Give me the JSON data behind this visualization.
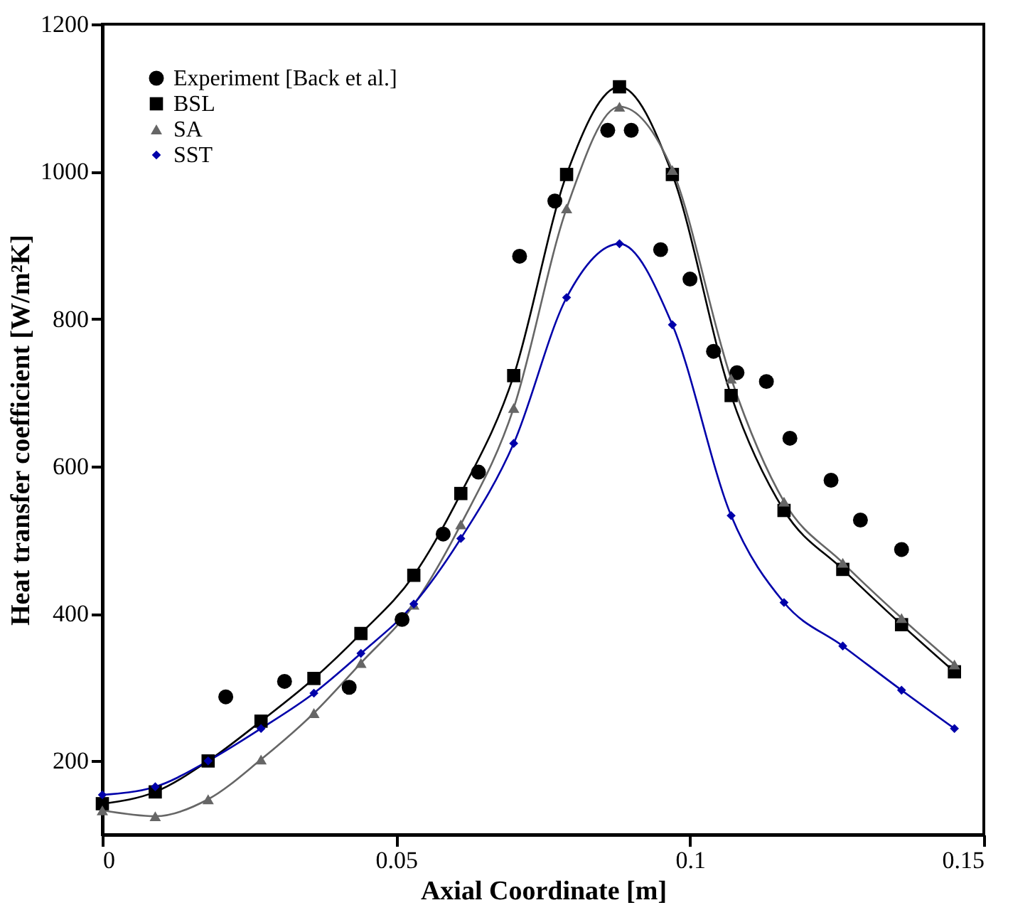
{
  "chart_data": {
    "type": "line",
    "xlabel": "Axial Coordinate [m]",
    "ylabel": "Heat transfer coefficient [W/m²K]",
    "xlim": [
      0,
      0.15
    ],
    "xticks": [
      0,
      0.05,
      0.1,
      0.15
    ],
    "ylim": [
      100,
      1200
    ],
    "yticks": [
      200,
      400,
      600,
      800,
      1000,
      1200
    ],
    "grid": false,
    "legend": "top left",
    "line_style": "solid",
    "series": [
      {
        "name": "Experiment [Back et al.]",
        "type": "scatter",
        "marker": "circle",
        "color": "#000000",
        "x": [
          0.021,
          0.031,
          0.042,
          0.051,
          0.058,
          0.064,
          0.071,
          0.077,
          0.086,
          0.09,
          0.095,
          0.1,
          0.104,
          0.108,
          0.113,
          0.117,
          0.124,
          0.129,
          0.136
        ],
        "values": [
          287,
          308,
          300,
          392,
          508,
          592,
          885,
          960,
          1056,
          1056,
          894,
          854,
          756,
          727,
          715,
          638,
          581,
          527,
          487
        ]
      },
      {
        "name": "BSL",
        "marker": "square",
        "color": "#000000",
        "x": [
          0,
          0.009,
          0.018,
          0.027,
          0.036,
          0.044,
          0.053,
          0.061,
          0.07,
          0.079,
          0.088,
          0.097,
          0.107,
          0.116,
          0.126,
          0.136,
          0.145
        ],
        "values": [
          142,
          158,
          200,
          254,
          312,
          373,
          452,
          563,
          723,
          996,
          1115,
          996,
          696,
          540,
          460,
          385,
          321
        ]
      },
      {
        "name": "SA",
        "marker": "triangle",
        "color": "#666666",
        "x": [
          0,
          0.009,
          0.018,
          0.027,
          0.036,
          0.044,
          0.053,
          0.061,
          0.07,
          0.079,
          0.088,
          0.097,
          0.107,
          0.116,
          0.126,
          0.136,
          0.145
        ],
        "values": [
          133,
          125,
          148,
          202,
          265,
          333,
          412,
          521,
          679,
          950,
          1088,
          1002,
          719,
          552,
          469,
          394,
          331
        ]
      },
      {
        "name": "SST",
        "marker": "diamond",
        "color": "#0000aa",
        "x": [
          0,
          0.009,
          0.018,
          0.027,
          0.036,
          0.044,
          0.053,
          0.061,
          0.07,
          0.079,
          0.088,
          0.097,
          0.107,
          0.116,
          0.126,
          0.136,
          0.145
        ],
        "values": [
          154,
          165,
          200,
          244,
          292,
          346,
          413,
          502,
          631,
          829,
          902,
          792,
          533,
          415,
          356,
          296,
          244
        ]
      }
    ]
  }
}
